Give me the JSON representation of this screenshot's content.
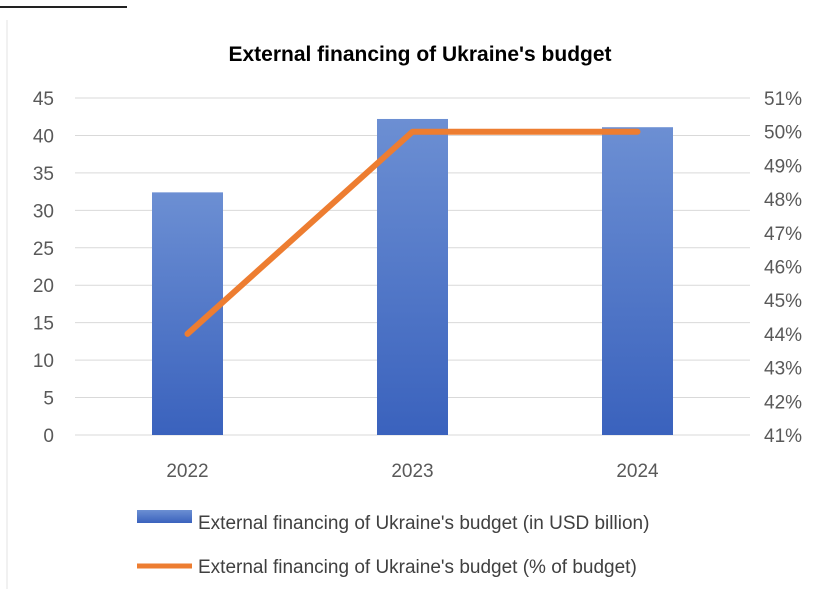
{
  "chart_data": {
    "type": "bar+line",
    "title": "External financing of Ukraine's budget",
    "categories": [
      "2022",
      "2023",
      "2024"
    ],
    "series": [
      {
        "name": "External financing of Ukraine's budget (in USD billion)",
        "type": "bar",
        "axis": "left",
        "values": [
          32.4,
          42.2,
          41.1
        ],
        "color": "#4472c4"
      },
      {
        "name": "External financing of Ukraine's budget (% of budget)",
        "type": "line",
        "axis": "right",
        "values": [
          44,
          50,
          50
        ],
        "color": "#ed7d31"
      }
    ],
    "y_left": {
      "min": 0,
      "max": 45,
      "step": 5,
      "ticks": [
        "0",
        "5",
        "10",
        "15",
        "20",
        "25",
        "30",
        "35",
        "40",
        "45"
      ]
    },
    "y_right": {
      "min": 41,
      "max": 51,
      "step": 1,
      "ticks": [
        "41%",
        "42%",
        "43%",
        "44%",
        "45%",
        "46%",
        "47%",
        "48%",
        "49%",
        "50%",
        "51%"
      ]
    },
    "grid": true,
    "legend_position": "bottom"
  }
}
